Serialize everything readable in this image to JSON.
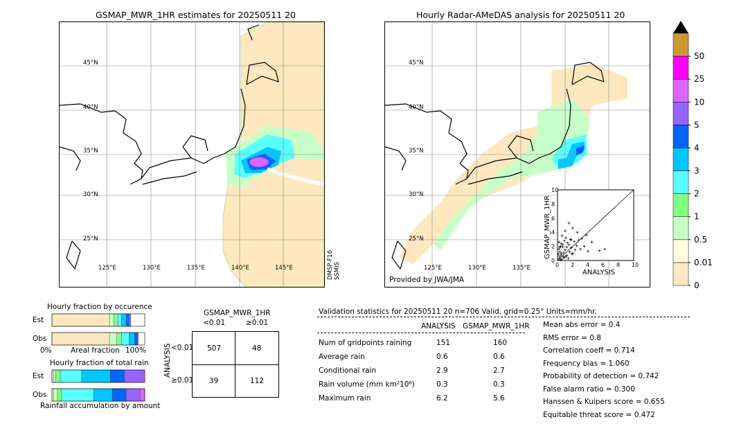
{
  "left_map": {
    "title": "GSMAP_MWR_1HR estimates for 20250511 20",
    "lat_labels": [
      "45°N",
      "40°N",
      "35°N",
      "30°N",
      "25°N"
    ],
    "lon_labels": [
      "125°E",
      "130°E",
      "135°E",
      "140°E",
      "145°E"
    ],
    "sat_label": "DMSP-F16\nSSMIS"
  },
  "right_map": {
    "title": "Hourly Radar-AMeDAS analysis for 20250511 20",
    "lat_labels": [
      "45°N",
      "40°N",
      "35°N",
      "30°N",
      "25°N"
    ],
    "lon_labels": [
      "125°E",
      "130°E",
      "135°E"
    ],
    "credit": "Provided by JWA/JMA"
  },
  "scatter": {
    "xlabel": "ANALYSIS",
    "ylabel": "GSMAP_MWR_1HR",
    "ticks": [
      "0",
      "2",
      "4",
      "6",
      "8",
      "10"
    ],
    "points": [
      [
        0.2,
        0.3
      ],
      [
        0.5,
        0.8
      ],
      [
        0.3,
        1.2
      ],
      [
        0.8,
        0.5
      ],
      [
        1.0,
        1.5
      ],
      [
        1.2,
        0.7
      ],
      [
        0.4,
        2.0
      ],
      [
        1.5,
        2.2
      ],
      [
        2.0,
        1.0
      ],
      [
        0.6,
        0.2
      ],
      [
        0.9,
        2.8
      ],
      [
        1.8,
        1.8
      ],
      [
        2.5,
        2.1
      ],
      [
        3.0,
        1.6
      ],
      [
        0.2,
        1.6
      ],
      [
        0.7,
        1.9
      ],
      [
        1.1,
        3.2
      ],
      [
        1.4,
        0.3
      ],
      [
        2.2,
        2.7
      ],
      [
        0.3,
        0.6
      ],
      [
        0.5,
        2.4
      ],
      [
        1.6,
        1.2
      ],
      [
        2.8,
        2.9
      ],
      [
        3.5,
        2.0
      ],
      [
        0.1,
        0.9
      ],
      [
        0.8,
        1.1
      ],
      [
        1.3,
        2.5
      ],
      [
        1.9,
        0.9
      ],
      [
        4.0,
        1.3
      ],
      [
        4.5,
        2.6
      ],
      [
        0.6,
        3.5
      ],
      [
        1.0,
        4.2
      ],
      [
        1.5,
        5.3
      ],
      [
        2.0,
        4.6
      ],
      [
        2.6,
        4.0
      ],
      [
        0.4,
        0.1
      ],
      [
        0.9,
        0.4
      ],
      [
        1.2,
        1.9
      ],
      [
        3.2,
        3.1
      ],
      [
        3.8,
        3.6
      ],
      [
        5.5,
        1.4
      ],
      [
        6.2,
        1.6
      ],
      [
        0.2,
        2.6
      ],
      [
        0.7,
        2.2
      ],
      [
        1.7,
        3.0
      ],
      [
        2.3,
        1.5
      ],
      [
        0.5,
        1.0
      ],
      [
        1.1,
        0.6
      ],
      [
        0.3,
        1.9
      ],
      [
        1.8,
        2.9
      ]
    ]
  },
  "colorbar": {
    "levels": [
      "0",
      "0.01",
      "0.5",
      "1",
      "2",
      "3",
      "4",
      "5",
      "10",
      "25",
      "50"
    ],
    "colors": [
      "#ffe8bf",
      "#ffffe0",
      "#c8ffc8",
      "#82ff82",
      "#5affff",
      "#00c8ff",
      "#0064ff",
      "#9664ff",
      "#dc64ff",
      "#ff00ff",
      "#cc9933"
    ]
  },
  "occurrence": {
    "title": "Hourly fraction by occurence",
    "rows": [
      "Est",
      "Obs"
    ],
    "axis_left": "0%",
    "axis_mid": "Areal fraction",
    "axis_right": "100%",
    "est": [
      0.62,
      0.05,
      0.04,
      0.04,
      0.05,
      0.03,
      0.02
    ],
    "obs": [
      0.62,
      0.08,
      0.05,
      0.08,
      0.06,
      0.03,
      0.01
    ]
  },
  "total_rain": {
    "title": "Hourly fraction of total rain",
    "rows": [
      "Est",
      "Obs"
    ],
    "footer": "Rainfall accumulation by amount",
    "est": [
      0.02,
      0.02,
      0.05,
      0.23,
      0.31,
      0.15,
      0.2,
      0.02
    ],
    "obs": [
      0.02,
      0.04,
      0.04,
      0.35,
      0.2,
      0.15,
      0.15,
      0.05
    ]
  },
  "contingency": {
    "title": "GSMAP_MWR_1HR",
    "col_lt": "<0.01",
    "col_ge": "≥0.01",
    "row_axis": "ANALYSIS",
    "row_lt": "<0.01",
    "row_ge": "≥0.01",
    "cells": [
      "507",
      "48",
      "39",
      "112"
    ]
  },
  "validation": {
    "header": "Validation statistics for 20250511 20  n=706 Valid. grid=0.25° Units=mm/hr.",
    "col_analysis": "ANALYSIS",
    "col_gsmap": "GSMAP_MWR_1HR",
    "rows": [
      {
        "label": "Num of gridpoints raining",
        "analysis": "151",
        "gsmap": "160"
      },
      {
        "label": "Average rain",
        "analysis": "0.6",
        "gsmap": "0.6"
      },
      {
        "label": "Conditional rain",
        "analysis": "2.9",
        "gsmap": "2.7"
      },
      {
        "label": "Rain volume (mm km²10⁶)",
        "analysis": "0.3",
        "gsmap": "0.3"
      },
      {
        "label": "Maximum rain",
        "analysis": "6.2",
        "gsmap": "5.6"
      }
    ],
    "scores": [
      "Mean abs error =    0.4",
      "RMS error =    0.8",
      "Correlation coeff =  0.714",
      "Frequency bias =  1.060",
      "Probability of detection =  0.742",
      "False alarm ratio =  0.300",
      "Hanssen & Kuipers score =  0.655",
      "Equitable threat score =  0.472"
    ]
  },
  "chart_data": [
    {
      "type": "scatter",
      "title": "",
      "xlabel": "ANALYSIS",
      "ylabel": "GSMAP_MWR_1HR",
      "xlim": [
        0,
        10
      ],
      "ylim": [
        0,
        10
      ]
    },
    {
      "type": "bar",
      "title": "Hourly fraction by occurence",
      "categories": [
        "Est",
        "Obs"
      ],
      "xlabel": "Areal fraction"
    },
    {
      "type": "bar",
      "title": "Hourly fraction of total rain",
      "categories": [
        "Est",
        "Obs"
      ],
      "xlabel": "Rainfall accumulation by amount"
    },
    {
      "type": "table",
      "title": "GSMAP_MWR_1HR",
      "rows": [
        [
          "507",
          "48"
        ],
        [
          "39",
          "112"
        ]
      ]
    }
  ]
}
